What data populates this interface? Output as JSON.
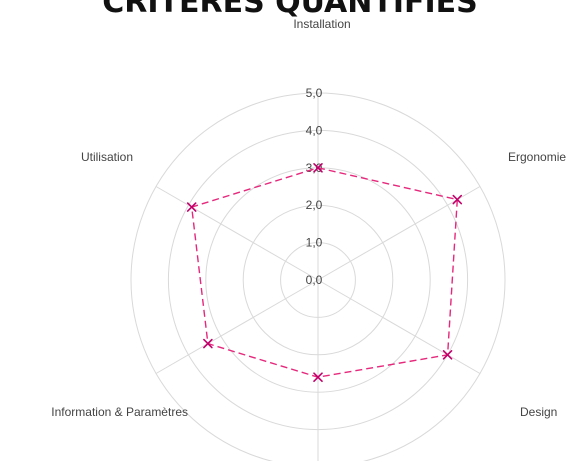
{
  "chart_data": {
    "type": "radar",
    "title": "CRITÈRES QUANTIFIÉS",
    "axes": [
      "Installation",
      "Ergonomie",
      "Design",
      "",
      "Information & Paramètres",
      "Utilisation"
    ],
    "tick_labels": [
      "0,0",
      "1,0",
      "2,0",
      "3,0",
      "4,0",
      "5,0"
    ],
    "range": [
      0,
      5
    ],
    "grid": true,
    "legend": "none",
    "series": [
      {
        "values": [
          3.0,
          4.3,
          4.0,
          2.6,
          3.4,
          3.9
        ],
        "color": "#e6287c",
        "marker_color": "#c2006b"
      }
    ]
  }
}
